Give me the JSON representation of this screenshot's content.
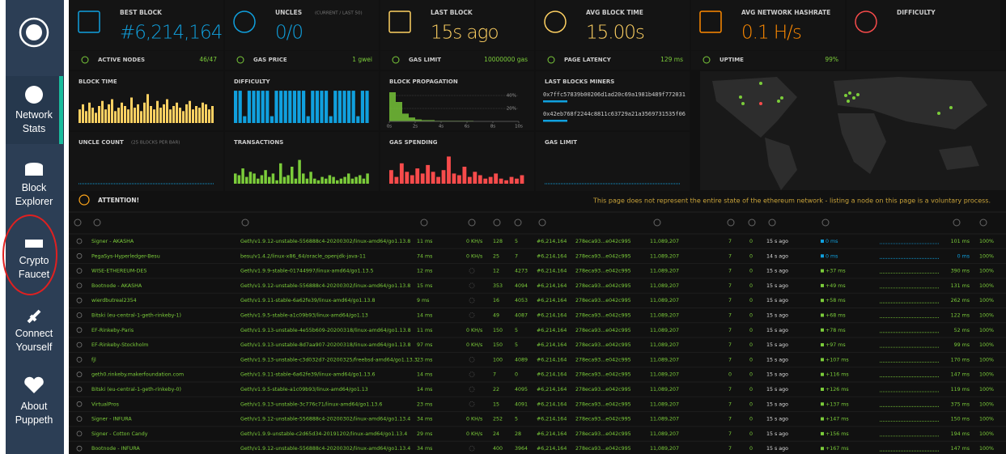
{
  "sidebar": {
    "items": [
      "Network Stats",
      "Block Explorer",
      "Crypto Faucet",
      "Connect Yourself",
      "About Puppeth"
    ]
  },
  "stats": [
    {
      "title": "BEST BLOCK",
      "value": "#6,214,164",
      "color": "#10a0de"
    },
    {
      "title": "UNCLES",
      "subtitle": "(CURRENT / LAST 50)",
      "value": "0/0",
      "color": "#10a0de"
    },
    {
      "title": "LAST BLOCK",
      "value": "15s ago",
      "color": "#ffd162"
    },
    {
      "title": "AVG BLOCK TIME",
      "value": "15.00s",
      "color": "#ffd162"
    },
    {
      "title": "AVG NETWORK HASHRATE",
      "value": "0.1 H/s",
      "color": "#ff8a00"
    },
    {
      "title": "DIFFICULTY",
      "color": "#f74b4b"
    }
  ],
  "substats": [
    {
      "label": "ACTIVE NODES",
      "value": "46/47"
    },
    {
      "label": "GAS PRICE",
      "value": "1 gwei"
    },
    {
      "label": "GAS LIMIT",
      "value": "10000000 gas"
    },
    {
      "label": "PAGE LATENCY",
      "value": "129 ms"
    },
    {
      "label": "UPTIME",
      "value": "99%"
    }
  ],
  "charts": [
    {
      "type": "bar",
      "title": "BLOCK TIME",
      "color": "#ffd162",
      "ylim": [
        0,
        100
      ],
      "values": [
        40,
        55,
        35,
        60,
        45,
        30,
        50,
        65,
        40,
        55,
        70,
        35,
        45,
        60,
        50,
        40,
        75,
        45,
        55,
        35,
        60,
        85,
        50,
        40,
        65,
        45,
        55,
        70,
        40,
        50,
        60,
        45,
        35,
        55,
        65,
        40,
        50,
        45,
        60,
        55,
        40,
        50
      ]
    },
    {
      "type": "bar",
      "title": "DIFFICULTY",
      "color": "#10a0de",
      "ylim": [
        0,
        100
      ],
      "values": [
        95,
        95,
        20,
        95,
        95,
        95,
        95,
        95,
        20,
        95,
        95,
        95,
        95,
        95,
        95,
        95,
        20,
        95,
        95,
        95,
        95,
        20,
        95,
        95,
        95,
        95,
        95,
        20,
        95,
        95
      ]
    },
    {
      "type": "histogram",
      "title": "BLOCK PROPAGATION",
      "color": "#7bcc3a",
      "xlim": [
        0,
        10
      ],
      "ylim": [
        0,
        50
      ],
      "bins": [
        0,
        0.5,
        1,
        1.5,
        2,
        2.5,
        3,
        3.5,
        4,
        4.5,
        5,
        5.5,
        6,
        6.5,
        7,
        7.5,
        8,
        8.5,
        9,
        9.5,
        10
      ],
      "values": [
        45,
        30,
        12,
        6,
        3,
        2,
        2,
        1,
        1,
        1,
        1,
        1,
        1,
        0.5,
        0.5,
        0.5,
        0.5,
        0.5,
        0.5,
        0.5
      ],
      "xticks": [
        {
          "value": 0,
          "label": "0s"
        },
        {
          "value": 2,
          "label": "2s"
        },
        {
          "value": 4,
          "label": "4s"
        },
        {
          "value": 6,
          "label": "6s"
        },
        {
          "value": 8,
          "label": "8s"
        },
        {
          "value": 10,
          "label": "10s"
        }
      ],
      "yticks": [
        {
          "value": 20,
          "label": "20%"
        },
        {
          "value": 40,
          "label": "40%"
        }
      ]
    },
    {
      "type": "list",
      "title": "LAST BLOCKS MINERS",
      "miners": [
        "0x7ffc57839b00206d1ad20c69a1981b489f772031",
        "0x42eb768f2244c8811c63729a21a3569731535f06"
      ]
    },
    {
      "type": "bar",
      "title": "UNCLE COUNT",
      "subtitle": "(25 BLOCKS PER BAR)",
      "color": "#10a0de",
      "ylim": [
        0,
        100
      ]
    },
    {
      "type": "bar",
      "title": "TRANSACTIONS",
      "color": "#7bcc3a",
      "ylim": [
        0,
        100
      ],
      "values": [
        30,
        25,
        45,
        20,
        35,
        30,
        15,
        25,
        40,
        20,
        30,
        10,
        60,
        20,
        25,
        50,
        15,
        70,
        30,
        15,
        35,
        15,
        10,
        20,
        15,
        25,
        20,
        10,
        15,
        20,
        30,
        15,
        20,
        25,
        15,
        30
      ]
    },
    {
      "type": "bar",
      "title": "GAS SPENDING",
      "color": "#f74b4b",
      "ylim": [
        0,
        100
      ],
      "values": [
        40,
        20,
        60,
        35,
        25,
        45,
        30,
        55,
        35,
        20,
        40,
        80,
        30,
        25,
        50,
        20,
        35,
        25,
        15,
        20,
        30,
        15,
        10,
        20,
        15,
        25
      ]
    },
    {
      "type": "bar",
      "title": "GAS LIMIT",
      "color": "#f74b4b",
      "ylim": [
        0,
        100
      ]
    }
  ],
  "attention": {
    "title": "ATTENTION!",
    "text": "This page does not represent the entire state of the ethereum network - listing a node on this page is a voluntary process."
  },
  "table": {
    "rows": [
      {
        "name": "Signer - AKASHA",
        "client": "Geth/v1.9.12-unstable-556888c4-20200302/linux-amd64/go1.13.8",
        "latency": "11 ms",
        "hashrate": "0 KH/s",
        "peers": 128,
        "pending": 5,
        "block": "#6,214,164",
        "hash": "278eca93...e042c995",
        "difficulty": "11,089,207",
        "txs": 7,
        "uncles": 0,
        "time": "15 s ago",
        "propagation": "0 ms",
        "avg": "101 ms",
        "uptime": "100%"
      },
      {
        "name": "PegaSys-Hyperledger-Besu",
        "client": "besu/v1.4.2/linux-x86_64/oracle_openjdk-java-11",
        "latency": "74 ms",
        "hashrate": "0 KH/s",
        "peers": 25,
        "pending": 7,
        "block": "#6,214,164",
        "hash": "278eca93...e042c995",
        "difficulty": "11,089,207",
        "txs": 7,
        "uncles": 0,
        "time": "14 s ago",
        "propagation": "0 ms",
        "avg": "0 ms",
        "uptime": "100%"
      },
      {
        "name": "WISE-ETHEREUM-DES",
        "client": "Geth/v1.9.9-stable-01744997/linux-amd64/go1.13.5",
        "latency": "12 ms",
        "peers": 12,
        "pending": 4273,
        "block": "#6,214,164",
        "hash": "278eca93...e042c995",
        "difficulty": "11,089,207",
        "txs": 7,
        "uncles": 0,
        "time": "15 s ago",
        "propagation": "+37 ms",
        "avg": "390 ms",
        "uptime": "100%"
      },
      {
        "name": "Bootnode - AKASHA",
        "client": "Geth/v1.9.12-unstable-556888c4-20200302/linux-amd64/go1.13.8",
        "latency": "15 ms",
        "peers": 353,
        "pending": 4094,
        "block": "#6,214,164",
        "hash": "278eca93...e042c995",
        "difficulty": "11,089,207",
        "txs": 7,
        "uncles": 0,
        "time": "15 s ago",
        "propagation": "+49 ms",
        "avg": "131 ms",
        "uptime": "100%"
      },
      {
        "name": "wierdbutreal2354",
        "client": "Geth/v1.9.11-stable-6a62fe39/linux-amd64/go1.13.8",
        "latency": "9 ms",
        "peers": 16,
        "pending": 4053,
        "block": "#6,214,164",
        "hash": "278eca93...e042c995",
        "difficulty": "11,089,207",
        "txs": 7,
        "uncles": 0,
        "time": "15 s ago",
        "propagation": "+58 ms",
        "avg": "262 ms",
        "uptime": "100%"
      },
      {
        "name": "Bitski (eu-central-1-geth-rinkeby-1)",
        "client": "Geth/v1.9.5-stable-a1c09b93/linux-amd64/go1.13",
        "latency": "14 ms",
        "peers": 49,
        "pending": 4087,
        "block": "#6,214,164",
        "hash": "278eca93...e042c995",
        "difficulty": "11,089,207",
        "txs": 7,
        "uncles": 0,
        "time": "15 s ago",
        "propagation": "+68 ms",
        "avg": "122 ms",
        "uptime": "100%"
      },
      {
        "name": "EF-Rinkeby-Paris",
        "client": "Geth/v1.9.13-unstable-4e55b609-20200318/linux-amd64/go1.13.8",
        "latency": "11 ms",
        "hashrate": "0 KH/s",
        "peers": 150,
        "pending": 5,
        "block": "#6,214,164",
        "hash": "278eca93...e042c995",
        "difficulty": "11,089,207",
        "txs": 7,
        "uncles": 0,
        "time": "15 s ago",
        "propagation": "+78 ms",
        "avg": "52 ms",
        "uptime": "100%"
      },
      {
        "name": "EF-Rinkeby-Stockholm",
        "client": "Geth/v1.9.13-unstable-8d7aa907-20200318/linux-amd64/go1.13.8",
        "latency": "97 ms",
        "hashrate": "0 KH/s",
        "peers": 150,
        "pending": 5,
        "block": "#6,214,164",
        "hash": "278eca93...e042c995",
        "difficulty": "11,089,207",
        "txs": 7,
        "uncles": 0,
        "time": "15 s ago",
        "propagation": "+97 ms",
        "avg": "99 ms",
        "uptime": "100%"
      },
      {
        "name": "fjl",
        "client": "Geth/v1.9.13-unstable-c3d032d7-20200325/freebsd-amd64/go1.13.3",
        "latency": "23 ms",
        "peers": 100,
        "pending": 4089,
        "block": "#6,214,164",
        "hash": "278eca93...e042c995",
        "difficulty": "11,089,207",
        "txs": 7,
        "uncles": 0,
        "time": "15 s ago",
        "propagation": "+107 ms",
        "avg": "170 ms",
        "uptime": "100%"
      },
      {
        "name": "geth0.rinkeby.makerfoundation.com",
        "client": "Geth/v1.9.11-stable-6a62fe39/linux-amd64/go1.13.6",
        "latency": "14 ms",
        "peers": 7,
        "pending": 0,
        "block": "#6,214,164",
        "hash": "278eca93...e042c995",
        "difficulty": "11,089,207",
        "txs": 0,
        "uncles": 0,
        "time": "15 s ago",
        "propagation": "+116 ms",
        "avg": "147 ms",
        "uptime": "100%"
      },
      {
        "name": "Bitski (eu-central-1-geth-rinkeby-0)",
        "client": "Geth/v1.9.5-stable-a1c09b93/linux-amd64/go1.13",
        "latency": "14 ms",
        "peers": 22,
        "pending": 4095,
        "block": "#6,214,164",
        "hash": "278eca93...e042c995",
        "difficulty": "11,089,207",
        "txs": 7,
        "uncles": 0,
        "time": "15 s ago",
        "propagation": "+126 ms",
        "avg": "119 ms",
        "uptime": "100%"
      },
      {
        "name": "VirtualPros",
        "client": "Geth/v1.9.13-unstable-3c776c71/linux-amd64/go1.13.6",
        "latency": "23 ms",
        "peers": 15,
        "pending": 4091,
        "block": "#6,214,164",
        "hash": "278eca93...e042c995",
        "difficulty": "11,089,207",
        "txs": 7,
        "uncles": 0,
        "time": "15 s ago",
        "propagation": "+137 ms",
        "avg": "375 ms",
        "uptime": "100%"
      },
      {
        "name": "Signer - INFURA",
        "client": "Geth/v1.9.12-unstable-556888c4-20200302/linux-amd64/go1.13.4",
        "latency": "34 ms",
        "hashrate": "0 KH/s",
        "peers": 252,
        "pending": 5,
        "block": "#6,214,164",
        "hash": "278eca93...e042c995",
        "difficulty": "11,089,207",
        "txs": 7,
        "uncles": 0,
        "time": "15 s ago",
        "propagation": "+147 ms",
        "avg": "150 ms",
        "uptime": "100%"
      },
      {
        "name": "Signer - Cotton Candy",
        "client": "Geth/v1.9.9-unstable-c2d65d34-20191202/linux-amd64/go1.13.4",
        "latency": "29 ms",
        "hashrate": "0 KH/s",
        "peers": 24,
        "pending": 28,
        "block": "#6,214,164",
        "hash": "278eca93...e042c995",
        "difficulty": "11,089,207",
        "txs": 7,
        "uncles": 0,
        "time": "15 s ago",
        "propagation": "+156 ms",
        "avg": "194 ms",
        "uptime": "100%"
      },
      {
        "name": "Bootnode - INFURA",
        "client": "Geth/v1.9.12-unstable-556888c4-20200302/linux-amd64/go1.13.4",
        "latency": "34 ms",
        "peers": 400,
        "pending": 3964,
        "block": "#6,214,164",
        "hash": "278eca93...e042c995",
        "difficulty": "11,089,207",
        "txs": 7,
        "uncles": 0,
        "time": "15 s ago",
        "propagation": "+167 ms",
        "avg": "147 ms",
        "uptime": "100%"
      }
    ]
  }
}
